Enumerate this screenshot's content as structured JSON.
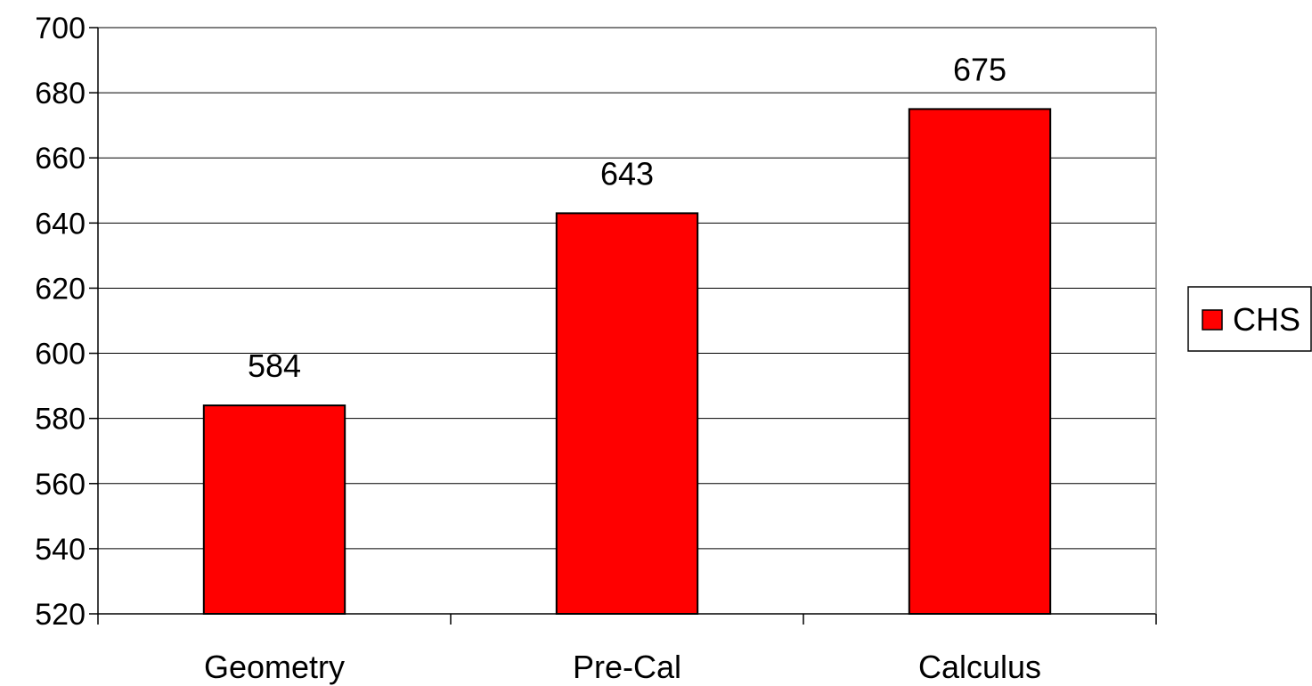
{
  "chart_data": {
    "type": "bar",
    "categories": [
      "Geometry",
      "Pre-Cal",
      "Calculus"
    ],
    "series": [
      {
        "name": "CHS",
        "values": [
          584,
          643,
          675
        ],
        "data_labels": [
          "584",
          "643",
          "675"
        ],
        "color": "#ff0000",
        "edge_color": "#000000"
      }
    ],
    "title": "",
    "xlabel": "",
    "ylabel": "",
    "ylim": [
      520,
      700
    ],
    "yticks": [
      520,
      540,
      560,
      580,
      600,
      620,
      640,
      660,
      680,
      700
    ],
    "ytick_labels": [
      "520",
      "540",
      "560",
      "580",
      "600",
      "620",
      "640",
      "660",
      "680",
      "700"
    ],
    "grid": "horizontal",
    "legend": {
      "position": "right",
      "entries": [
        "CHS"
      ]
    }
  }
}
